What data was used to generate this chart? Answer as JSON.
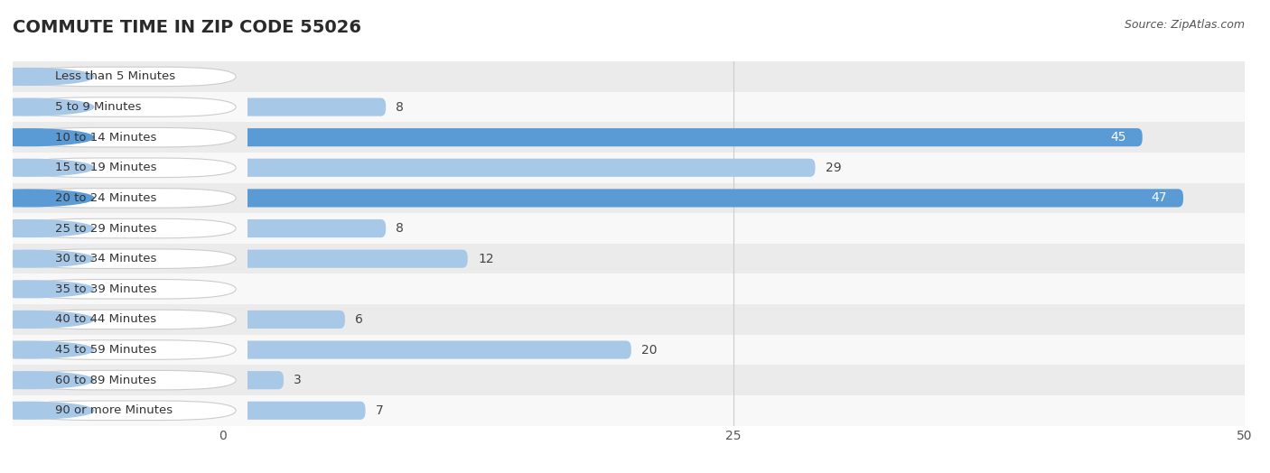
{
  "title": "COMMUTE TIME IN ZIP CODE 55026",
  "source": "Source: ZipAtlas.com",
  "categories": [
    "Less than 5 Minutes",
    "5 to 9 Minutes",
    "10 to 14 Minutes",
    "15 to 19 Minutes",
    "20 to 24 Minutes",
    "25 to 29 Minutes",
    "30 to 34 Minutes",
    "35 to 39 Minutes",
    "40 to 44 Minutes",
    "45 to 59 Minutes",
    "60 to 89 Minutes",
    "90 or more Minutes"
  ],
  "values": [
    0,
    8,
    45,
    29,
    47,
    8,
    12,
    0,
    6,
    20,
    3,
    7
  ],
  "bar_color_normal": "#a8c8e8",
  "bar_color_highlight": "#5b9bd5",
  "highlight_indices": [
    2,
    4
  ],
  "label_color_inside": "#ffffff",
  "label_color_outside": "#444444",
  "xlim": [
    0,
    50
  ],
  "xticks": [
    0,
    25,
    50
  ],
  "row_even_color": "#ebebeb",
  "row_odd_color": "#f8f8f8",
  "title_fontsize": 14,
  "source_fontsize": 9,
  "bar_label_fontsize": 10,
  "category_fontsize": 9.5,
  "tick_fontsize": 10,
  "pill_bg_color": "#ffffff",
  "pill_border_color": "#cccccc",
  "pill_dot_color_normal": "#a8c8e8",
  "pill_dot_color_highlight": "#5b9bd5"
}
